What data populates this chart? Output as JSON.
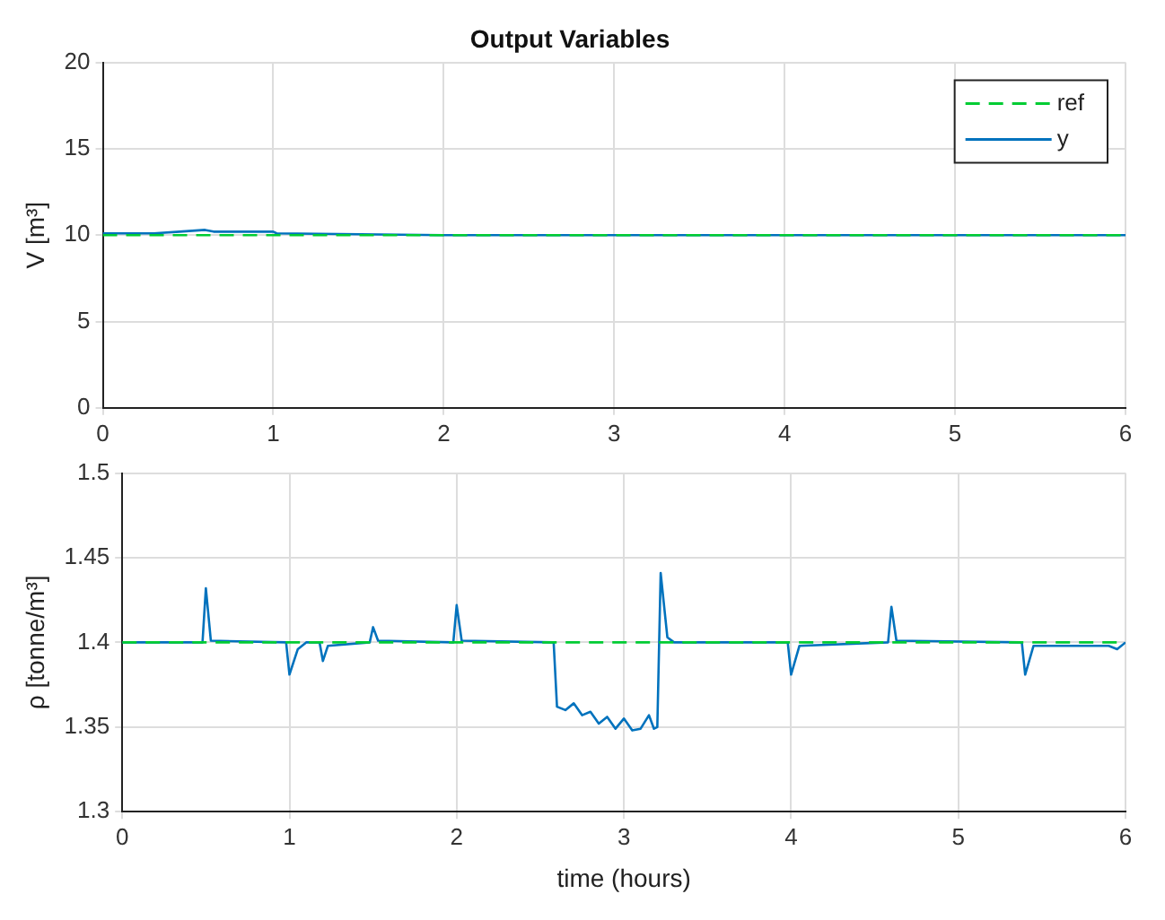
{
  "chart_data": [
    {
      "type": "line",
      "title": "Output Variables",
      "ylabel": "V [m³]",
      "xlim": [
        0,
        6
      ],
      "xticks": [
        0,
        1,
        2,
        3,
        4,
        5,
        6
      ],
      "ylim": [
        0,
        20
      ],
      "yticks": [
        0,
        5,
        10,
        15,
        20
      ],
      "grid": true,
      "legend": "top right",
      "marker": "none",
      "series": [
        {
          "name": "ref",
          "color": "#00cc33",
          "line_style": "dashed",
          "x": [
            0,
            6
          ],
          "values": [
            10,
            10
          ]
        },
        {
          "name": "y",
          "color": "#0072bd",
          "line_style": "solid",
          "x": [
            0,
            0.2,
            0.3,
            0.45,
            0.6,
            0.65,
            0.8,
            1.0,
            1.02,
            2,
            3,
            4,
            5,
            6
          ],
          "values": [
            10.1,
            10.1,
            10.1,
            10.2,
            10.3,
            10.2,
            10.2,
            10.2,
            10.1,
            10,
            10,
            10,
            10,
            10
          ]
        }
      ]
    },
    {
      "type": "line",
      "xlabel": "time (hours)",
      "ylabel": "ρ [tonne/m³]",
      "xlim": [
        0,
        6
      ],
      "xticks": [
        0,
        1,
        2,
        3,
        4,
        5,
        6
      ],
      "ylim": [
        1.3,
        1.5
      ],
      "yticks": [
        1.3,
        1.35,
        1.4,
        1.45,
        1.5
      ],
      "grid": true,
      "marker": "none",
      "series": [
        {
          "color": "#00cc33",
          "line_style": "dashed",
          "x": [
            0,
            6
          ],
          "values": [
            1.4,
            1.4
          ]
        },
        {
          "color": "#0072bd",
          "line_style": "solid",
          "x": [
            0,
            0.48,
            0.5,
            0.53,
            0.98,
            1.0,
            1.05,
            1.1,
            1.18,
            1.2,
            1.23,
            1.48,
            1.5,
            1.53,
            1.98,
            2.0,
            2.03,
            2.58,
            2.6,
            2.65,
            2.7,
            2.75,
            2.8,
            2.85,
            2.9,
            2.95,
            3.0,
            3.05,
            3.1,
            3.15,
            3.18,
            3.2,
            3.22,
            3.26,
            3.3,
            3.98,
            4.0,
            4.05,
            4.58,
            4.6,
            4.63,
            5.38,
            5.4,
            5.45,
            5.9,
            5.95,
            6.0
          ],
          "values": [
            1.4,
            1.4,
            1.432,
            1.401,
            1.4,
            1.381,
            1.396,
            1.4,
            1.4,
            1.389,
            1.398,
            1.4,
            1.409,
            1.401,
            1.4,
            1.422,
            1.401,
            1.4,
            1.362,
            1.36,
            1.364,
            1.357,
            1.359,
            1.352,
            1.356,
            1.349,
            1.355,
            1.348,
            1.349,
            1.357,
            1.349,
            1.35,
            1.441,
            1.403,
            1.4,
            1.4,
            1.381,
            1.398,
            1.4,
            1.421,
            1.401,
            1.4,
            1.381,
            1.398,
            1.398,
            1.396,
            1.4
          ]
        }
      ]
    }
  ]
}
